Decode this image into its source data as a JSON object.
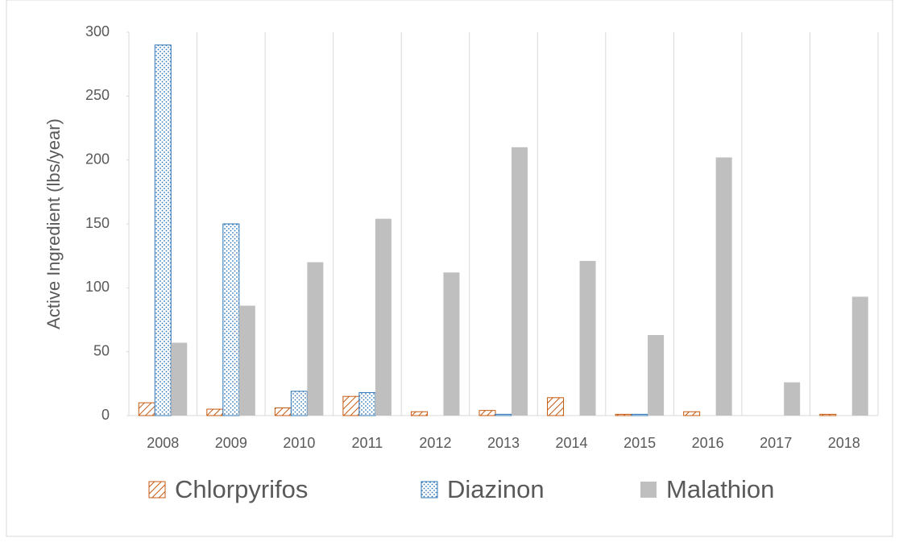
{
  "chart_data": {
    "type": "bar",
    "y_label": "Active Ingredient (lbs/year)",
    "categories": [
      "2008",
      "2009",
      "2010",
      "2011",
      "2012",
      "2013",
      "2014",
      "2015",
      "2016",
      "2017",
      "2018"
    ],
    "series": [
      {
        "name": "Chlorpyrifos",
        "color": "#c55a11",
        "pattern": "hatch",
        "values": [
          10,
          5,
          6,
          15,
          3,
          4,
          14,
          1,
          3,
          0,
          1
        ]
      },
      {
        "name": "Diazinon",
        "color": "#2e75b6",
        "pattern": "dots",
        "values": [
          290,
          150,
          19,
          18,
          0,
          1,
          0,
          1,
          0,
          0,
          0
        ]
      },
      {
        "name": "Malathion",
        "color": "#bfbfbf",
        "pattern": "solid",
        "values": [
          57,
          86,
          120,
          154,
          112,
          210,
          121,
          63,
          202,
          26,
          93
        ]
      }
    ],
    "ylim": [
      0,
      300
    ],
    "yticks": [
      0,
      50,
      100,
      150,
      200,
      250,
      300
    ],
    "legend": "bottom"
  }
}
